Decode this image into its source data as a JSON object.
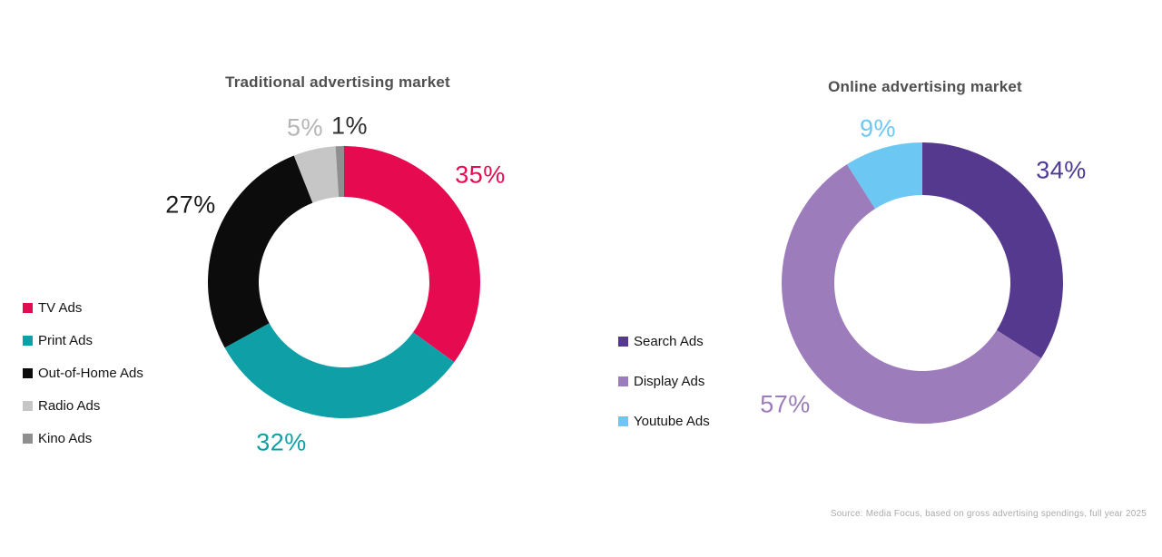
{
  "source_note": "Source: Media Focus, based on gross advertising spendings, full year 2025",
  "chart_data": [
    {
      "type": "pie",
      "variant": "donut",
      "title": "Traditional advertising market",
      "legend_position": "left",
      "start_angle_deg": 0,
      "direction": "clockwise",
      "segments": [
        {
          "label": "TV Ads",
          "value": 35,
          "value_label": "35%",
          "color": "#E60A50",
          "label_color": "#E60A50"
        },
        {
          "label": "Print Ads",
          "value": 32,
          "value_label": "32%",
          "color": "#0FA0A7",
          "label_color": "#0FA0A7"
        },
        {
          "label": "Out-of-Home Ads",
          "value": 27,
          "value_label": "27%",
          "color": "#0C0C0C",
          "label_color": "#1A1A1A"
        },
        {
          "label": "Radio Ads",
          "value": 5,
          "value_label": "5%",
          "color": "#C6C6C6",
          "label_color": "#B5B5B5"
        },
        {
          "label": "Kino Ads",
          "value": 1,
          "value_label": "1%",
          "color": "#8F8F8F",
          "label_color": "#303030"
        }
      ]
    },
    {
      "type": "pie",
      "variant": "donut",
      "title": "Online advertising market",
      "legend_position": "left",
      "start_angle_deg": 0,
      "direction": "clockwise",
      "segments": [
        {
          "label": "Search Ads",
          "value": 34,
          "value_label": "34%",
          "color": "#54398F",
          "label_color": "#4F3A96"
        },
        {
          "label": "Display Ads",
          "value": 57,
          "value_label": "57%",
          "color": "#9C7CBA",
          "label_color": "#9C7CBA"
        },
        {
          "label": "Youtube Ads",
          "value": 9,
          "value_label": "9%",
          "color": "#6CC8F2",
          "label_color": "#6CC8F2"
        }
      ]
    }
  ]
}
